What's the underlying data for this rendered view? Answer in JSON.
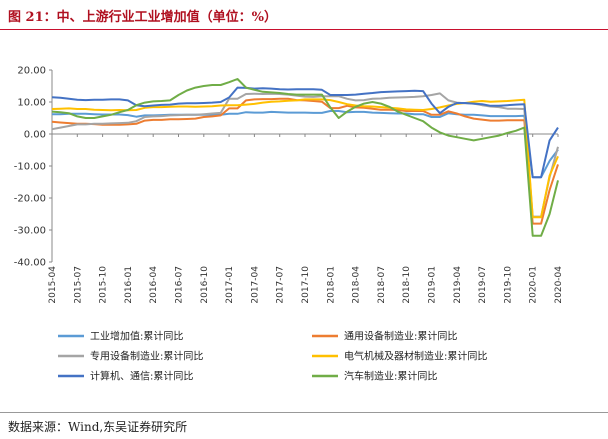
{
  "title": "图 21：中、上游行业工业增加值（单位：%）",
  "source": "数据来源：Wind,东吴证券研究所",
  "chart_data": {
    "type": "line",
    "ylim": [
      -40,
      20
    ],
    "y_ticks": [
      "20.00",
      "10.00",
      "0.00",
      "-10.00",
      "-20.00",
      "-30.00",
      "-40.00"
    ],
    "y_tick_values": [
      20,
      10,
      0,
      -10,
      -20,
      -30,
      -40
    ],
    "x": [
      "2015-04",
      "2015-05",
      "2015-06",
      "2015-07",
      "2015-08",
      "2015-09",
      "2015-10",
      "2015-11",
      "2015-12",
      "2016-01",
      "2016-02",
      "2016-03",
      "2016-04",
      "2016-05",
      "2016-06",
      "2016-07",
      "2016-08",
      "2016-09",
      "2016-10",
      "2016-11",
      "2016-12",
      "2017-01",
      "2017-02",
      "2017-03",
      "2017-04",
      "2017-05",
      "2017-06",
      "2017-07",
      "2017-08",
      "2017-09",
      "2017-10",
      "2017-11",
      "2017-12",
      "2018-01",
      "2018-02",
      "2018-03",
      "2018-04",
      "2018-05",
      "2018-06",
      "2018-07",
      "2018-08",
      "2018-09",
      "2018-10",
      "2018-11",
      "2018-12",
      "2019-01",
      "2019-02",
      "2019-03",
      "2019-04",
      "2019-05",
      "2019-06",
      "2019-07",
      "2019-08",
      "2019-09",
      "2019-10",
      "2019-11",
      "2019-12",
      "2020-01",
      "2020-02",
      "2020-03",
      "2020-04"
    ],
    "x_tick_labels": [
      "2015-04",
      "2015-07",
      "2015-10",
      "2016-01",
      "2016-04",
      "2016-07",
      "2016-10",
      "2017-01",
      "2017-04",
      "2017-07",
      "2017-10",
      "2018-01",
      "2018-04",
      "2018-07",
      "2018-10",
      "2019-01",
      "2019-04",
      "2019-07",
      "2019-10",
      "2020-01",
      "2020-04"
    ],
    "grid": false,
    "legend_position": "bottom",
    "series": [
      {
        "name": "工业增加值:累计同比",
        "color": "#5b9bd5",
        "values": [
          6.2,
          6.2,
          6.3,
          6.3,
          6.3,
          6.2,
          6.1,
          6.1,
          6.1,
          5.9,
          5.4,
          5.8,
          5.8,
          5.9,
          6.0,
          6.0,
          6.0,
          6.0,
          6.0,
          6.0,
          6.0,
          6.3,
          6.3,
          6.8,
          6.7,
          6.7,
          6.9,
          6.8,
          6.7,
          6.7,
          6.7,
          6.6,
          6.6,
          7.2,
          7.2,
          6.8,
          6.9,
          6.9,
          6.7,
          6.6,
          6.5,
          6.4,
          6.4,
          6.2,
          6.2,
          5.3,
          5.3,
          6.5,
          6.2,
          6.0,
          6.0,
          5.8,
          5.6,
          5.6,
          5.6,
          5.6,
          5.7,
          -13.5,
          -13.5,
          -8.4,
          -4.9
        ]
      },
      {
        "name": "通用设备制造业:累计同比",
        "color": "#ed7d31",
        "values": [
          3.8,
          3.6,
          3.4,
          3.2,
          3.2,
          3.1,
          2.9,
          2.9,
          2.9,
          3.0,
          3.2,
          4.2,
          4.4,
          4.4,
          4.6,
          4.6,
          4.7,
          4.8,
          5.3,
          5.5,
          5.8,
          8.0,
          8.0,
          10.5,
          10.8,
          10.9,
          10.9,
          11.0,
          11.0,
          10.6,
          10.5,
          10.3,
          10.1,
          8.1,
          8.1,
          8.8,
          8.3,
          8.2,
          7.9,
          7.6,
          7.6,
          7.5,
          7.2,
          7.2,
          7.2,
          6.0,
          6.0,
          7.1,
          6.4,
          5.5,
          4.8,
          4.5,
          4.2,
          4.2,
          4.3,
          4.3,
          4.3,
          -28.0,
          -28.0,
          -17.5,
          -9.5
        ]
      },
      {
        "name": "专用设备制造业:累计同比",
        "color": "#a5a5a5",
        "values": [
          1.5,
          2.0,
          2.5,
          3.0,
          3.0,
          3.2,
          3.2,
          3.3,
          3.4,
          3.5,
          4.0,
          5.3,
          5.5,
          5.6,
          5.8,
          5.9,
          6.0,
          6.0,
          6.2,
          6.4,
          6.6,
          11.0,
          11.0,
          12.5,
          12.6,
          12.5,
          12.6,
          12.5,
          12.3,
          12.0,
          11.7,
          11.6,
          11.8,
          11.8,
          11.8,
          11.0,
          10.5,
          10.6,
          11.0,
          11.1,
          11.3,
          11.4,
          11.5,
          11.6,
          11.8,
          12.2,
          12.7,
          10.5,
          9.8,
          9.6,
          9.5,
          9.0,
          8.6,
          8.4,
          7.9,
          7.9,
          7.8,
          -25.8,
          -25.8,
          -13.5,
          -4.0
        ]
      },
      {
        "name": "电气机械及器材制造业:累计同比",
        "color": "#ffc000",
        "values": [
          7.8,
          7.9,
          8.0,
          7.8,
          7.8,
          7.6,
          7.5,
          7.4,
          7.5,
          7.4,
          7.5,
          8.2,
          8.4,
          8.4,
          8.5,
          8.6,
          8.6,
          8.5,
          8.6,
          8.7,
          8.9,
          9.0,
          9.0,
          9.2,
          9.4,
          9.8,
          10.1,
          10.2,
          10.4,
          10.5,
          10.8,
          10.8,
          10.8,
          10.6,
          10.0,
          9.3,
          8.9,
          8.7,
          8.6,
          8.4,
          8.2,
          8.0,
          7.7,
          7.6,
          7.5,
          7.8,
          8.3,
          8.9,
          9.4,
          9.7,
          10.1,
          10.3,
          10.1,
          10.2,
          10.3,
          10.5,
          10.7,
          -26.0,
          -26.0,
          -13.0,
          -7.0
        ]
      },
      {
        "name": "计算机、通信:累计同比",
        "color": "#4472c4",
        "values": [
          11.5,
          11.3,
          11.0,
          10.7,
          10.6,
          10.7,
          10.7,
          10.8,
          10.8,
          10.5,
          9.0,
          8.7,
          8.9,
          9.1,
          9.2,
          9.5,
          9.6,
          9.6,
          9.7,
          9.8,
          10.0,
          11.4,
          14.5,
          14.4,
          14.2,
          14.3,
          14.2,
          14.0,
          13.9,
          14.0,
          14.0,
          14.0,
          13.8,
          12.2,
          12.2,
          12.2,
          12.3,
          12.6,
          12.8,
          13.1,
          13.2,
          13.3,
          13.4,
          13.5,
          13.4,
          9.5,
          6.5,
          8.5,
          9.7,
          9.7,
          9.5,
          9.3,
          8.8,
          8.8,
          9.0,
          9.2,
          9.3,
          -13.5,
          -13.5,
          -2.0,
          2.0
        ]
      },
      {
        "name": "汽车制造业:累计同比",
        "color": "#70ad47",
        "values": [
          7.0,
          6.8,
          6.5,
          5.5,
          5.0,
          5.0,
          5.5,
          6.0,
          6.8,
          7.5,
          9.0,
          9.8,
          10.2,
          10.3,
          10.5,
          12.2,
          13.6,
          14.5,
          15.0,
          15.3,
          15.3,
          16.2,
          17.2,
          14.5,
          13.8,
          13.2,
          13.0,
          12.8,
          12.5,
          12.3,
          12.3,
          12.3,
          12.3,
          8.3,
          5.0,
          7.0,
          8.5,
          9.5,
          10.0,
          9.5,
          8.5,
          7.0,
          6.0,
          5.0,
          4.0,
          2.0,
          0.5,
          -0.5,
          -1.0,
          -1.5,
          -2.0,
          -1.5,
          -1.0,
          -0.5,
          0.3,
          1.0,
          2.0,
          -31.8,
          -31.8,
          -25.0,
          -14.5
        ]
      }
    ]
  }
}
